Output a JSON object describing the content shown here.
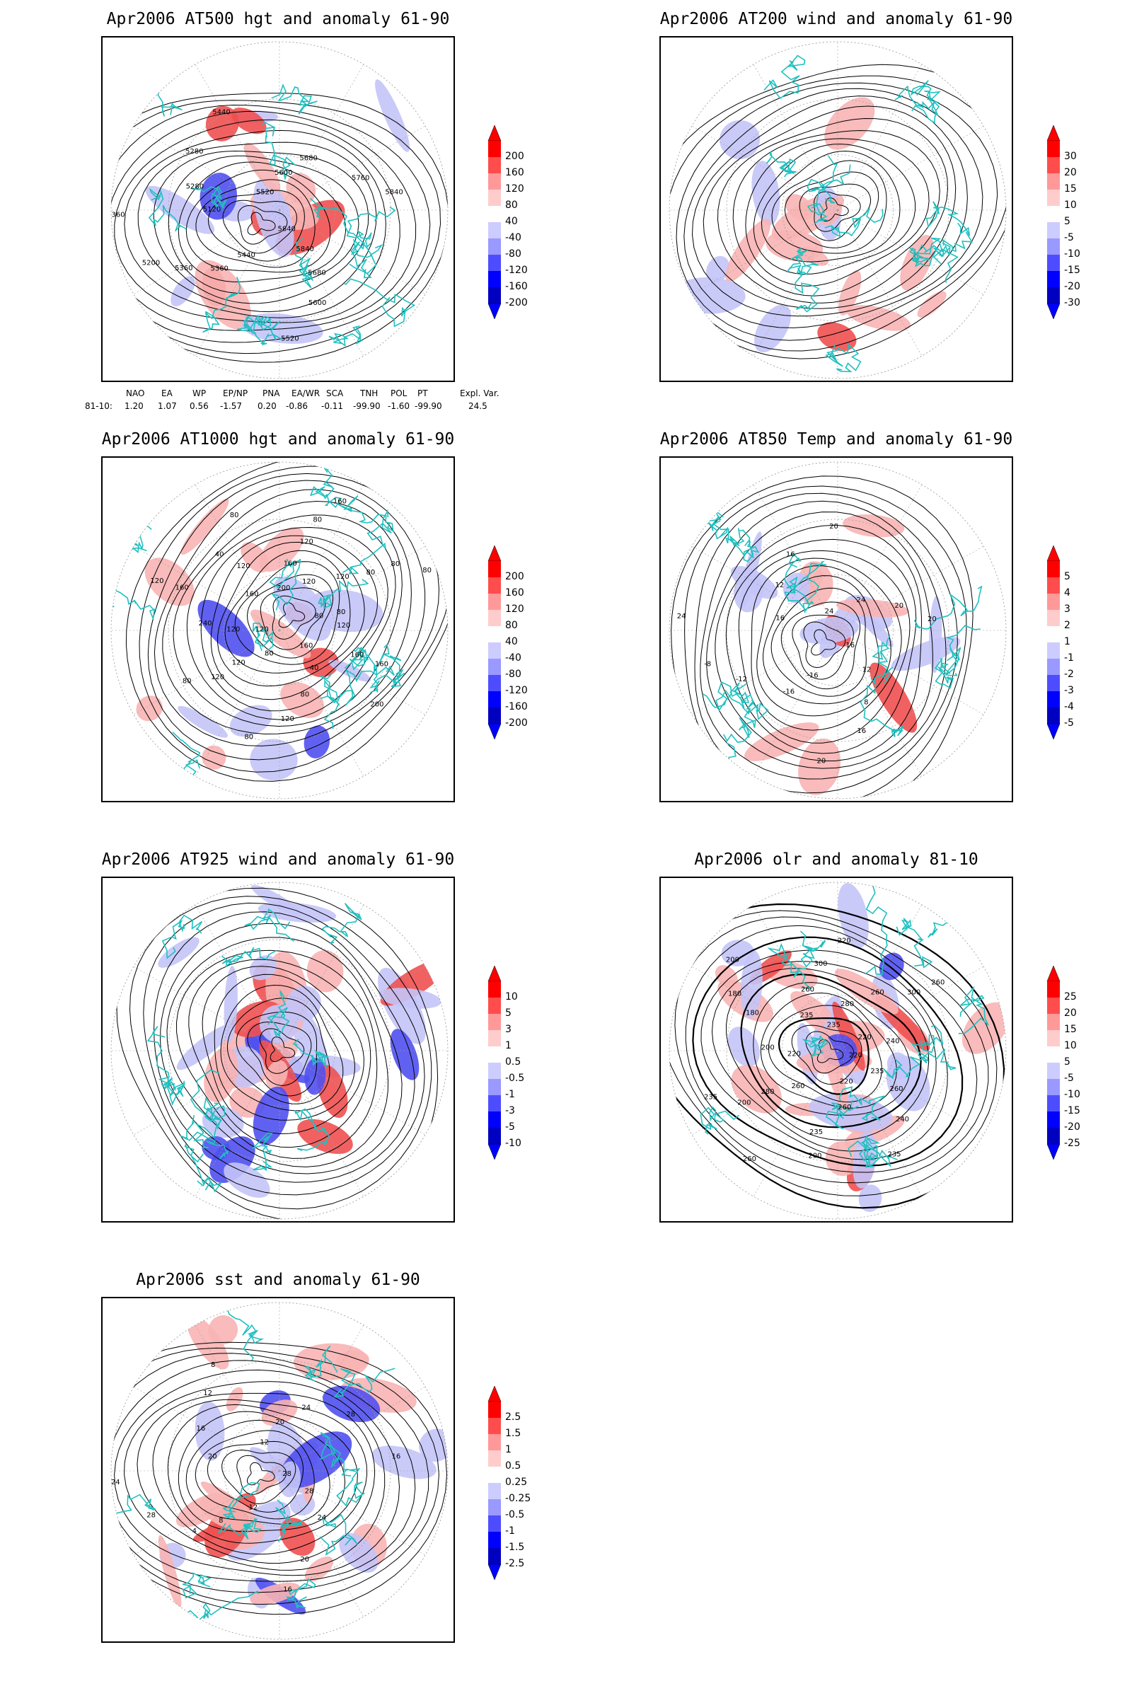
{
  "panels": [
    {
      "id": "p1",
      "title": "Apr2006 AT500 hgt and anomaly 61-90",
      "colorbar_labels": [
        "200",
        "160",
        "120",
        "80",
        "40",
        "-40",
        "-80",
        "-120",
        "-160",
        "-200"
      ],
      "contour_labels": [
        "5840",
        "5840",
        "5680",
        "5600",
        "5520",
        "5440",
        "5360",
        "5360",
        "5200",
        "5360",
        "5120",
        "5280",
        "5280",
        "5440",
        "5520",
        "5600",
        "5680",
        "5760",
        "5840"
      ],
      "anomaly_blobs": [
        {
          "sign": "pos",
          "strength": 0.6
        },
        {
          "sign": "pos",
          "strength": 1.0
        },
        {
          "sign": "neg",
          "strength": 0.5
        },
        {
          "sign": "pos",
          "strength": 0.5
        },
        {
          "sign": "neg",
          "strength": 0.3
        }
      ]
    },
    {
      "id": "p2",
      "title": "Apr2006 AT200 wind and anomaly 61-90",
      "colorbar_labels": [
        "30",
        "20",
        "15",
        "10",
        "5",
        "-5",
        "-10",
        "-15",
        "-20",
        "-30"
      ],
      "contour_labels": []
    },
    {
      "id": "p3",
      "title": "Apr2006 AT1000 hgt and anomaly 61-90",
      "colorbar_labels": [
        "200",
        "160",
        "120",
        "80",
        "40",
        "-40",
        "-80",
        "-120",
        "-160",
        "-200"
      ],
      "contour_labels": [
        "80",
        "120",
        "160",
        "160",
        "200",
        "160",
        "40",
        "80",
        "120",
        "80",
        "80",
        "120",
        "120",
        "80",
        "120",
        "120",
        "240",
        "160",
        "120",
        "160",
        "120",
        "40",
        "80",
        "200",
        "160",
        "120",
        "80",
        "160",
        "120",
        "120",
        "80",
        "80",
        "80",
        "80"
      ]
    },
    {
      "id": "p4",
      "title": "Apr2006 AT850 Temp and anomaly 61-90",
      "colorbar_labels": [
        "5",
        "4",
        "3",
        "2",
        "1",
        "-1",
        "-2",
        "-3",
        "-4",
        "-5"
      ],
      "contour_labels": [
        "16",
        "12",
        "8",
        "16",
        "20",
        "-16",
        "-16",
        "-12",
        "-8",
        "24",
        "16",
        "12",
        "16",
        "20",
        "24",
        "24",
        "20",
        "20"
      ]
    },
    {
      "id": "p5",
      "title": "Apr2006 AT925 wind and anomaly 61-90",
      "colorbar_labels": [
        "10",
        "5",
        "3",
        "1",
        "0.5",
        "-0.5",
        "-1",
        "-3",
        "-5",
        "-10"
      ],
      "contour_labels": []
    },
    {
      "id": "p6",
      "title": "Apr2006 olr and anomaly 81-10",
      "colorbar_labels": [
        "25",
        "20",
        "15",
        "10",
        "5",
        "-5",
        "-10",
        "-15",
        "-20",
        "-25"
      ],
      "contour_labels": [
        "220",
        "235",
        "260",
        "240",
        "235",
        "220",
        "260",
        "235",
        "200",
        "260",
        "260",
        "280",
        "200",
        "235",
        "220",
        "200",
        "180",
        "180",
        "200",
        "235",
        "260",
        "300",
        "220",
        "235",
        "280",
        "260",
        "300",
        "260",
        "220",
        "240"
      ]
    },
    {
      "id": "p7",
      "title": "Apr2006 sst and anomaly 61-90",
      "colorbar_labels": [
        "2.5",
        "1.5",
        "1",
        "0.5",
        "0.25",
        "-0.25",
        "-0.5",
        "-1",
        "-1.5",
        "-2.5"
      ],
      "contour_labels": [
        "28",
        "28",
        "24",
        "20",
        "16",
        "12",
        "8",
        "4",
        "28",
        "24",
        "20",
        "16",
        "12",
        "8",
        "12",
        "20",
        "24",
        "28",
        "16"
      ]
    }
  ],
  "colorbar_colors": [
    "#ff0000",
    "#ff4d4d",
    "#ff9999",
    "#ffcccc",
    "#ffffff",
    "#ccccff",
    "#9999ff",
    "#4d4dff",
    "#0000ff",
    "#0000c0"
  ],
  "index_table": {
    "headers": [
      "NAO",
      "EA",
      "WP",
      "EP/NP",
      "PNA",
      "EA/WR",
      "SCA",
      "TNH",
      "POL",
      "PT",
      "Expl. Var."
    ],
    "row_label": "81-10:",
    "values": [
      "1.20",
      "1.07",
      "0.56",
      "-1.57",
      "0.20",
      "-0.86",
      "-0.11",
      "-99.90",
      "-1.60",
      "-99.90",
      "24.5"
    ]
  },
  "colors": {
    "positive_anomaly": "#f08080",
    "negative_anomaly": "#8080f0",
    "coastline": "#20c0c0",
    "contour": "#000000",
    "grid": "#a0a0a0"
  }
}
